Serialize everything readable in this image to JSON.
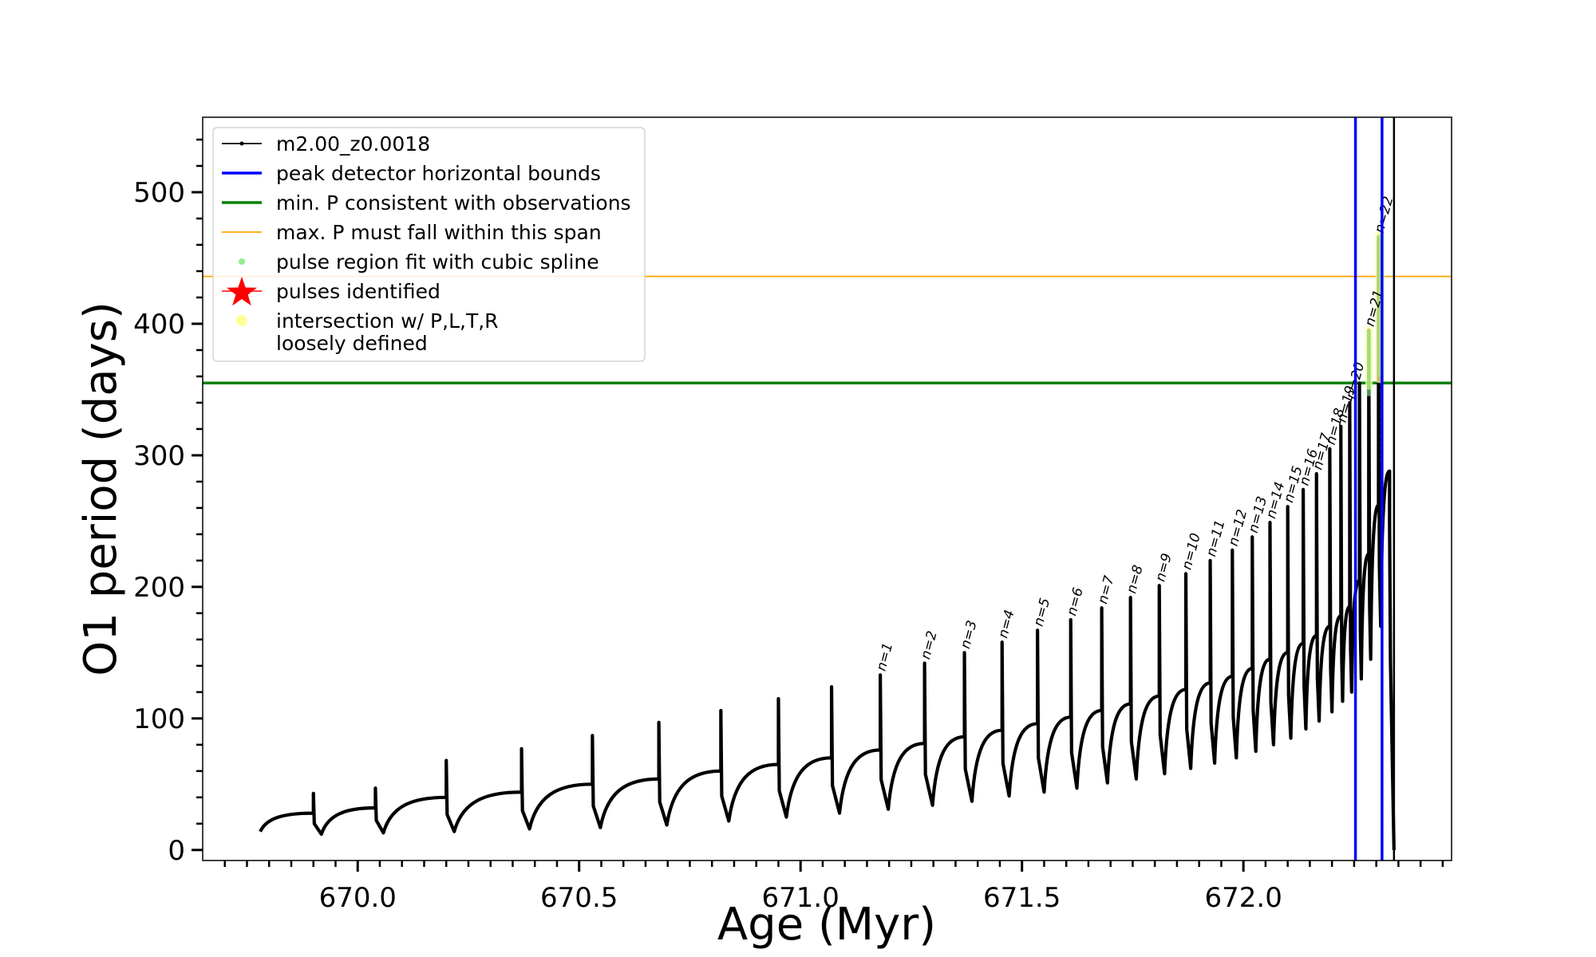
{
  "chart_data": {
    "type": "line",
    "title": "",
    "xlabel": "Age (Myr)",
    "ylabel": "O1 period (days)",
    "xlim": [
      669.65,
      672.47
    ],
    "ylim": [
      -8,
      557
    ],
    "xticks": [
      670.0,
      670.5,
      671.0,
      671.5,
      672.0
    ],
    "xtick_labels": [
      "670.0",
      "670.5",
      "671.0",
      "671.5",
      "672.0"
    ],
    "yticks": [
      0,
      100,
      200,
      300,
      400,
      500
    ],
    "ytick_labels": [
      "0",
      "100",
      "200",
      "300",
      "400",
      "500"
    ],
    "legend_position": "top-left",
    "legend": [
      {
        "label": "m2.00_z0.0018",
        "style": "line-dot",
        "color": "#000000"
      },
      {
        "label": "peak detector horizontal bounds",
        "style": "line",
        "color": "#0000ff"
      },
      {
        "label": "min. P consistent with observations",
        "style": "line",
        "color": "#008000"
      },
      {
        "label": "max. P must fall within this span",
        "style": "thin-line",
        "color": "#ffa500"
      },
      {
        "label": "pulse region fit with cubic spline",
        "style": "dot",
        "color": "#90ee90"
      },
      {
        "label": "pulses identified",
        "style": "star",
        "color": "#ff0000"
      },
      {
        "label": "intersection w/ P,L,T,R",
        "label2": "loosely defined",
        "style": "dot",
        "color": "#ffff99"
      }
    ],
    "hlines": [
      {
        "name": "min. P consistent with observations",
        "y": 355,
        "color": "#008000"
      },
      {
        "name": "max. P must fall within this span",
        "y": 436,
        "color": "#ffa500"
      }
    ],
    "vlines": [
      {
        "name": "peak detector bound left",
        "x": 672.253,
        "color": "#0000ff"
      },
      {
        "name": "peak detector bound right",
        "x": 672.313,
        "color": "#0000ff"
      },
      {
        "name": "end of track",
        "x": 672.34,
        "color": "#000000"
      }
    ],
    "series": [
      {
        "name": "m2.00_z0.0018",
        "color": "#000000",
        "start": {
          "x": 669.78,
          "y": 14
        },
        "pulses": [
          {
            "x": 669.9,
            "pre": 28,
            "peak": 43,
            "dip": 12
          },
          {
            "x": 670.04,
            "pre": 32,
            "peak": 47,
            "dip": 13
          },
          {
            "x": 670.2,
            "pre": 40,
            "peak": 68,
            "dip": 14
          },
          {
            "x": 670.37,
            "pre": 44,
            "peak": 77,
            "dip": 16
          },
          {
            "x": 670.53,
            "pre": 50,
            "peak": 87,
            "dip": 17
          },
          {
            "x": 670.68,
            "pre": 54,
            "peak": 97,
            "dip": 19
          },
          {
            "x": 670.82,
            "pre": 60,
            "peak": 106,
            "dip": 22
          },
          {
            "x": 670.95,
            "pre": 65,
            "peak": 115,
            "dip": 25
          },
          {
            "x": 671.07,
            "pre": 70,
            "peak": 124,
            "dip": 28
          },
          {
            "x": 671.18,
            "pre": 76,
            "peak": 133,
            "dip": 31,
            "label": "n=1"
          },
          {
            "x": 671.28,
            "pre": 81,
            "peak": 142,
            "dip": 34,
            "label": "n=2"
          },
          {
            "x": 671.37,
            "pre": 86,
            "peak": 150,
            "dip": 37,
            "label": "n=3"
          },
          {
            "x": 671.455,
            "pre": 91,
            "peak": 158,
            "dip": 41,
            "label": "n=4"
          },
          {
            "x": 671.535,
            "pre": 96,
            "peak": 167,
            "dip": 44,
            "label": "n=5"
          },
          {
            "x": 671.61,
            "pre": 101,
            "peak": 175,
            "dip": 47,
            "label": "n=6"
          },
          {
            "x": 671.68,
            "pre": 106,
            "peak": 184,
            "dip": 51,
            "label": "n=7"
          },
          {
            "x": 671.745,
            "pre": 111,
            "peak": 192,
            "dip": 54,
            "label": "n=8"
          },
          {
            "x": 671.81,
            "pre": 117,
            "peak": 201,
            "dip": 58,
            "label": "n=9"
          },
          {
            "x": 671.87,
            "pre": 122,
            "peak": 210,
            "dip": 62,
            "label": "n=10"
          },
          {
            "x": 671.925,
            "pre": 127,
            "peak": 220,
            "dip": 66,
            "label": "n=11"
          },
          {
            "x": 671.975,
            "pre": 132,
            "peak": 228,
            "dip": 70,
            "label": "n=12"
          },
          {
            "x": 672.02,
            "pre": 138,
            "peak": 238,
            "dip": 75,
            "label": "n=13"
          },
          {
            "x": 672.06,
            "pre": 145,
            "peak": 249,
            "dip": 80,
            "label": "n=14"
          },
          {
            "x": 672.1,
            "pre": 150,
            "peak": 261,
            "dip": 85,
            "label": "n=15"
          },
          {
            "x": 672.135,
            "pre": 157,
            "peak": 274,
            "dip": 92,
            "label": "n=16"
          },
          {
            "x": 672.165,
            "pre": 163,
            "peak": 286,
            "dip": 98,
            "label": "n=17"
          },
          {
            "x": 672.195,
            "pre": 170,
            "peak": 305,
            "dip": 105,
            "label": "n=18"
          },
          {
            "x": 672.22,
            "pre": 178,
            "peak": 322,
            "dip": 113,
            "label": "n=19"
          },
          {
            "x": 672.24,
            "pre": 185,
            "peak": 340,
            "dip": 120,
            "label": "n=20"
          },
          {
            "x": 672.262,
            "pre": 205,
            "peak": 355,
            "dip": 130
          },
          {
            "x": 672.283,
            "pre": 225,
            "peak": 395,
            "dip": 145,
            "label": "n=21"
          },
          {
            "x": 672.305,
            "pre": 262,
            "peak": 466,
            "dip": 170,
            "label": "n=22"
          },
          {
            "x": 672.33,
            "pre": 288,
            "peak": 248,
            "dip": 0
          }
        ]
      }
    ],
    "spline_fit_regions": [
      {
        "x": [
          672.275,
          672.292
        ],
        "y": [
          345,
          395
        ]
      },
      {
        "x": [
          672.3,
          672.315
        ],
        "y": [
          360,
          468
        ]
      }
    ],
    "intersection_regions": [
      {
        "x": [
          672.275,
          672.292
        ],
        "y": [
          350,
          398
        ]
      },
      {
        "x": [
          672.298,
          672.318
        ],
        "y": [
          355,
          470
        ]
      }
    ]
  }
}
